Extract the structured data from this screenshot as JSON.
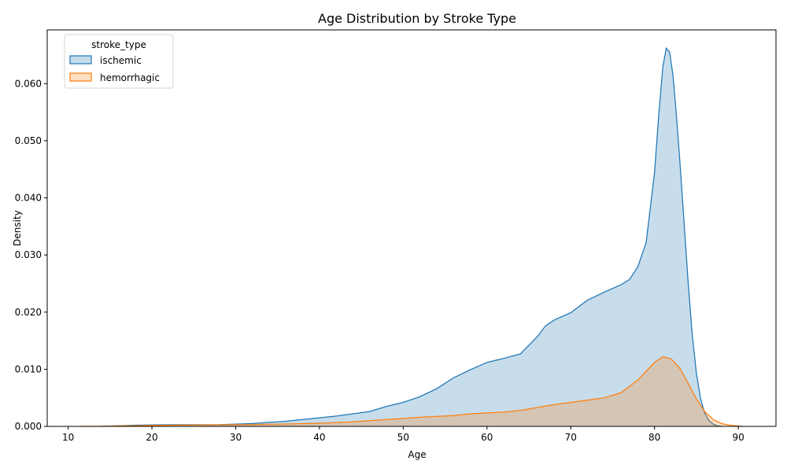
{
  "chart_data": {
    "type": "area",
    "title": "Age Distribution by Stroke Type",
    "xlabel": "Age",
    "ylabel": "Density",
    "xlim": [
      7.5,
      94.5
    ],
    "ylim": [
      0,
      0.0694
    ],
    "xticks": [
      10,
      20,
      30,
      40,
      50,
      60,
      70,
      80,
      90
    ],
    "yticks": [
      0.0,
      0.01,
      0.02,
      0.03,
      0.04,
      0.05,
      0.06
    ],
    "ytick_labels": [
      "0.000",
      "0.010",
      "0.020",
      "0.030",
      "0.040",
      "0.050",
      "0.060"
    ],
    "grid": false,
    "legend": {
      "title": "stroke_type",
      "placement": "top-left"
    },
    "series": [
      {
        "name": "ischemic",
        "color": "#1f77b4",
        "fill": "#c7dcec",
        "points": [
          [
            14,
            0
          ],
          [
            16,
            0.0001
          ],
          [
            18,
            0.0002
          ],
          [
            20,
            0.00025
          ],
          [
            22,
            0.0003
          ],
          [
            24,
            0.0003
          ],
          [
            26,
            0.0003
          ],
          [
            28,
            0.0003
          ],
          [
            30,
            0.0004
          ],
          [
            32,
            0.0005
          ],
          [
            34,
            0.0007
          ],
          [
            36,
            0.0009
          ],
          [
            38,
            0.0012
          ],
          [
            40,
            0.0015
          ],
          [
            42,
            0.0018
          ],
          [
            44,
            0.0022
          ],
          [
            46,
            0.0026
          ],
          [
            48,
            0.0035
          ],
          [
            50,
            0.0042
          ],
          [
            52,
            0.0052
          ],
          [
            54,
            0.0066
          ],
          [
            56,
            0.0085
          ],
          [
            58,
            0.0099
          ],
          [
            60,
            0.0112
          ],
          [
            62,
            0.0119
          ],
          [
            64,
            0.0127
          ],
          [
            66,
            0.0157
          ],
          [
            67,
            0.0176
          ],
          [
            68,
            0.0186
          ],
          [
            70,
            0.0199
          ],
          [
            72,
            0.0221
          ],
          [
            74,
            0.0235
          ],
          [
            76,
            0.0248
          ],
          [
            77,
            0.0257
          ],
          [
            78,
            0.0279
          ],
          [
            79,
            0.0322
          ],
          [
            80,
            0.0444
          ],
          [
            80.5,
            0.0545
          ],
          [
            81,
            0.063
          ],
          [
            81.4,
            0.0662
          ],
          [
            81.8,
            0.0655
          ],
          [
            82.2,
            0.0615
          ],
          [
            82.6,
            0.0547
          ],
          [
            83,
            0.0469
          ],
          [
            83.5,
            0.0363
          ],
          [
            84,
            0.0255
          ],
          [
            84.5,
            0.0161
          ],
          [
            85,
            0.0093
          ],
          [
            85.5,
            0.0048
          ],
          [
            86,
            0.0023
          ],
          [
            86.5,
            0.001
          ],
          [
            87,
            0.0004
          ],
          [
            87.5,
            0.0001
          ],
          [
            88,
            0
          ]
        ]
      },
      {
        "name": "hemorrhagic",
        "color": "#ff7f0e",
        "fill": "#ffd8b4",
        "points": [
          [
            11.5,
            0
          ],
          [
            14,
            0
          ],
          [
            16,
            0.0001
          ],
          [
            18,
            0.0001
          ],
          [
            20,
            0.00018
          ],
          [
            24,
            0.00022
          ],
          [
            28,
            0.00025
          ],
          [
            32,
            0.00032
          ],
          [
            36,
            0.00042
          ],
          [
            40,
            0.00055
          ],
          [
            44,
            0.0008
          ],
          [
            48,
            0.0012
          ],
          [
            52,
            0.0016
          ],
          [
            56,
            0.0019
          ],
          [
            58,
            0.0022
          ],
          [
            62,
            0.0025
          ],
          [
            64,
            0.0028
          ],
          [
            66,
            0.0033
          ],
          [
            68,
            0.0038
          ],
          [
            70,
            0.0042
          ],
          [
            72,
            0.0046
          ],
          [
            74,
            0.005
          ],
          [
            76,
            0.0059
          ],
          [
            78,
            0.0081
          ],
          [
            80,
            0.0112
          ],
          [
            81,
            0.0122
          ],
          [
            82,
            0.0118
          ],
          [
            83,
            0.0102
          ],
          [
            84,
            0.0076
          ],
          [
            85,
            0.0048
          ],
          [
            86,
            0.0026
          ],
          [
            87,
            0.0012
          ],
          [
            88,
            0.0005
          ],
          [
            89,
            0.0002
          ],
          [
            90.5,
            0
          ]
        ]
      }
    ]
  }
}
